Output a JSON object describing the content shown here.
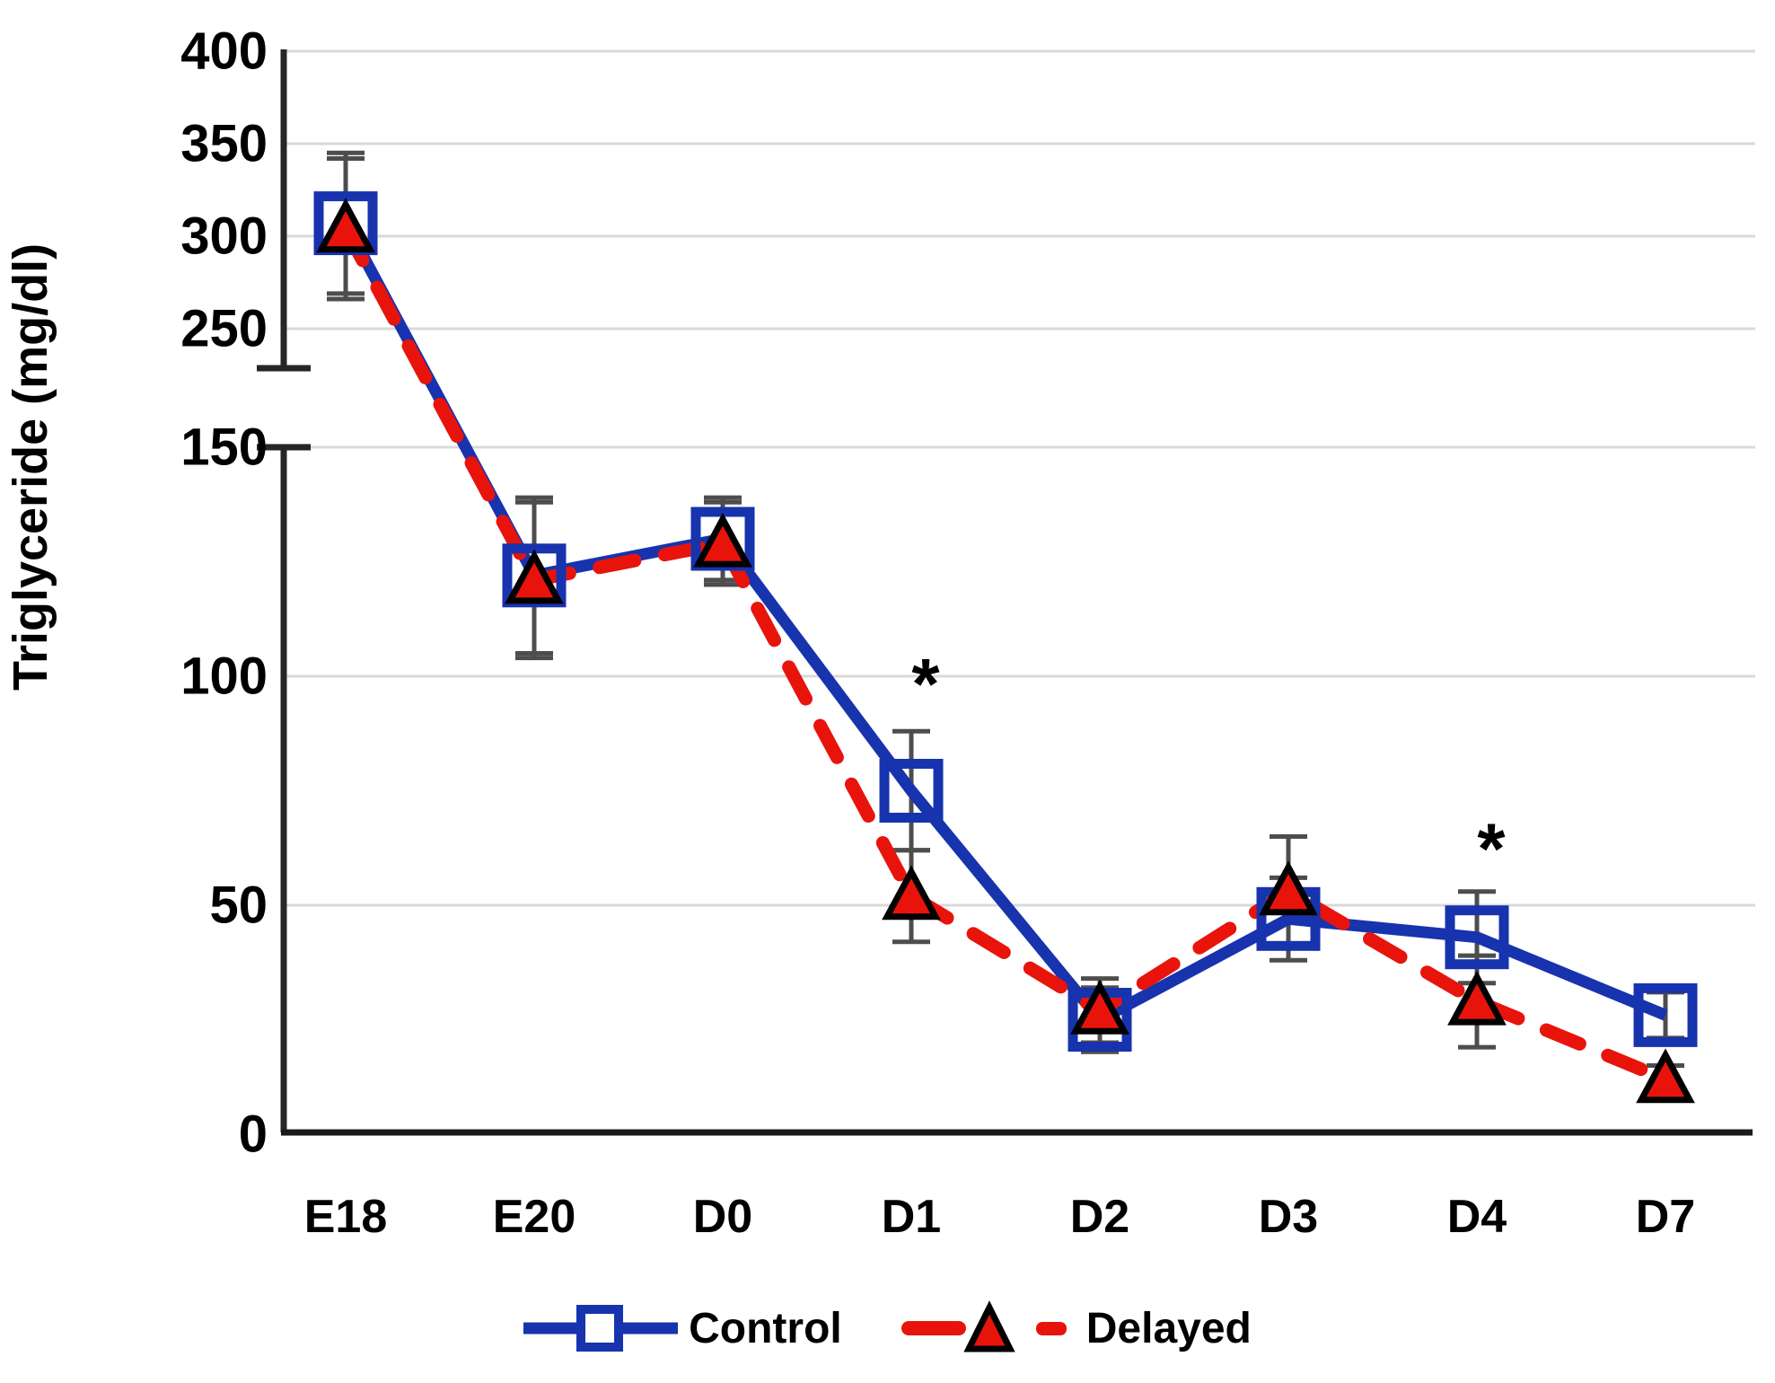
{
  "chart_data": {
    "type": "line",
    "title": "",
    "xlabel": "",
    "ylabel": "Triglyceride (mg/dl)",
    "categories": [
      "E18",
      "E20",
      "D0",
      "D1",
      "D2",
      "D3",
      "D4",
      "D7"
    ],
    "yticks_upper": [
      400,
      350,
      300,
      250
    ],
    "yticks_lower": [
      150,
      100,
      50,
      0
    ],
    "axis_break": {
      "upper_range": [
        250,
        400
      ],
      "lower_range": [
        0,
        150
      ]
    },
    "grid": "horizontal",
    "legend_position": "bottom",
    "series": [
      {
        "name": "Control",
        "marker": "open-square",
        "line_style": "solid",
        "color": "#1733ae",
        "values": [
          307,
          122,
          130,
          75,
          25,
          47,
          43,
          26
        ],
        "error": [
          38,
          17,
          9,
          13,
          7,
          9,
          10,
          5
        ]
      },
      {
        "name": "Delayed",
        "marker": "filled-triangle",
        "line_style": "dashed",
        "color": "#e8140c",
        "values": [
          304,
          121,
          129,
          52,
          27,
          53,
          29,
          12
        ],
        "error": [
          38,
          17,
          9,
          10,
          7,
          12,
          10,
          3
        ]
      }
    ],
    "annotations": [
      {
        "text": "*",
        "category": "D1",
        "y": 100
      },
      {
        "text": "*",
        "category": "D4",
        "y": 64
      }
    ],
    "colors": {
      "gridline": "#d9d9d9",
      "axis": "#262626",
      "error_bar": "#4d4d4d",
      "control_blue": "#1733ae",
      "delayed_red": "#e8140c"
    }
  }
}
